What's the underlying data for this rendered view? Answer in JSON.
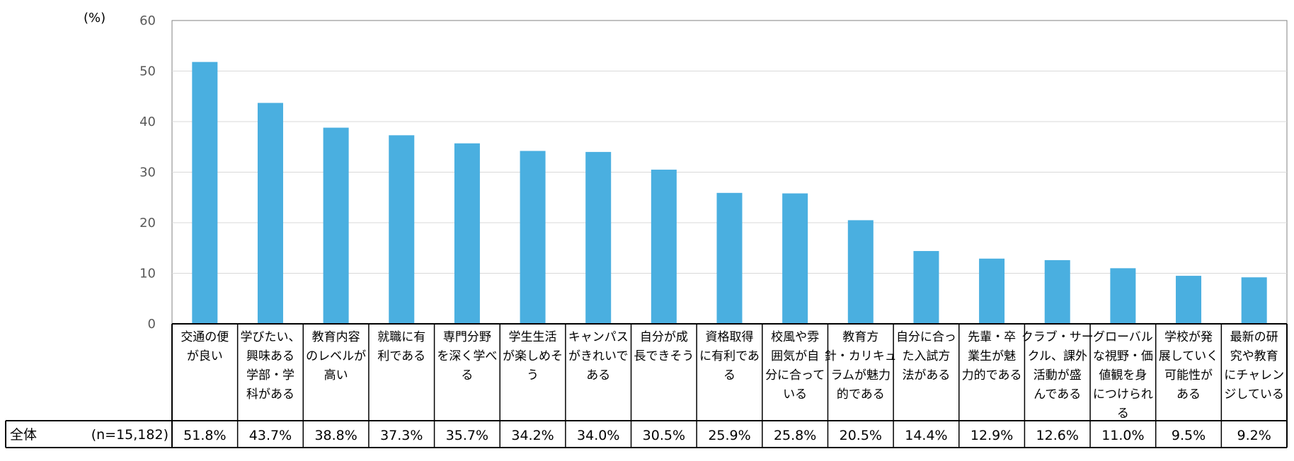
{
  "chart_data": {
    "type": "bar",
    "unit_label": "(%)",
    "ylim": [
      0,
      60
    ],
    "yticks": [
      0,
      10,
      20,
      30,
      40,
      50,
      60
    ],
    "grid": true,
    "bar_color": "#4AAFE0",
    "categories": [
      [
        "交通の便",
        "が良い"
      ],
      [
        "学びたい、",
        "興味ある",
        "学部・学",
        "科がある"
      ],
      [
        "教育内容",
        "のレベルが",
        "高い"
      ],
      [
        "就職に有",
        "利である"
      ],
      [
        "専門分野",
        "を深く学べ",
        "る"
      ],
      [
        "学生生活",
        "が楽しめそ",
        "う"
      ],
      [
        "キャンパス",
        "がきれいで",
        "ある"
      ],
      [
        "自分が成",
        "長できそう"
      ],
      [
        "資格取得",
        "に有利であ",
        "る"
      ],
      [
        "校風や雰",
        "囲気が自",
        "分に合って",
        "いる"
      ],
      [
        "教育方",
        "針・カリキュ",
        "ラムが魅力",
        "的である"
      ],
      [
        "自分に合っ",
        "た入試方",
        "法がある"
      ],
      [
        "先輩・卒",
        "業生が魅",
        "力的である"
      ],
      [
        "クラブ・サー",
        "クル、課外",
        "活動が盛",
        "んである"
      ],
      [
        "グローバル",
        "な視野・価",
        "値観を身",
        "につけられ",
        "る"
      ],
      [
        "学校が発",
        "展していく",
        "可能性が",
        "ある"
      ],
      [
        "最新の研",
        "究や教育",
        "にチャレン",
        "ジしている"
      ]
    ],
    "series": [
      {
        "values": [
          51.8,
          43.7,
          38.8,
          37.3,
          35.7,
          34.2,
          34.0,
          30.5,
          25.9,
          25.8,
          20.5,
          14.4,
          12.9,
          12.6,
          11.0,
          9.5,
          9.2
        ]
      }
    ],
    "table_row": {
      "label": "全体",
      "n_label": "(n=15,182)",
      "values": [
        "51.8%",
        "43.7%",
        "38.8%",
        "37.3%",
        "35.7%",
        "34.2%",
        "34.0%",
        "30.5%",
        "25.9%",
        "25.8%",
        "20.5%",
        "14.4%",
        "12.9%",
        "12.6%",
        "11.0%",
        "9.5%",
        "9.2%"
      ]
    }
  }
}
